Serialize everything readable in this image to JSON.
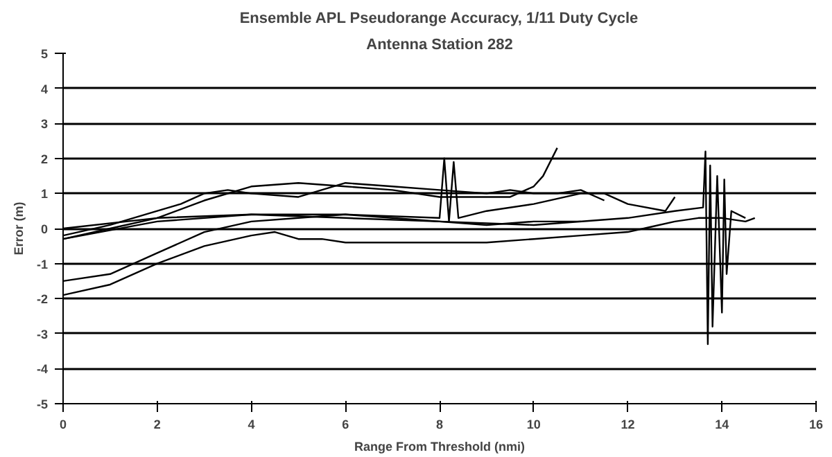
{
  "chart_data": {
    "type": "line",
    "title": "Ensemble APL Pseudorange Accuracy, 1/11 Duty Cycle",
    "subtitle": "Antenna Station 282",
    "xlabel": "Range From Threshold (nmi)",
    "ylabel": "Error (m)",
    "xlim": [
      0,
      16
    ],
    "xticks": [
      0,
      2,
      4,
      6,
      8,
      10,
      12,
      14,
      16
    ],
    "ylim": [
      -5,
      5
    ],
    "yticks": [
      -5,
      -4,
      -3,
      -2,
      -1,
      0,
      1,
      2,
      3,
      4,
      5
    ],
    "grid": "y",
    "marker": "none",
    "line_style": "solid",
    "series": [
      {
        "color": "#000000",
        "x": [
          0,
          1,
          2,
          3,
          4,
          4.5,
          5,
          5.5,
          6,
          7,
          8,
          9,
          10,
          11,
          12,
          12.5,
          13,
          13.5,
          14,
          14.5,
          14.7
        ],
        "values": [
          -1.9,
          -1.6,
          -1.0,
          -0.5,
          -0.2,
          -0.1,
          -0.3,
          -0.3,
          -0.4,
          -0.4,
          -0.4,
          -0.4,
          -0.3,
          -0.2,
          -0.1,
          0.05,
          0.2,
          0.3,
          0.3,
          0.2,
          0.3
        ]
      },
      {
        "color": "#000000",
        "x": [
          0,
          1,
          2,
          3,
          4,
          5,
          6,
          7,
          8,
          9,
          10,
          11
        ],
        "values": [
          -1.5,
          -1.3,
          -0.7,
          -0.1,
          0.2,
          0.3,
          0.4,
          0.3,
          0.2,
          0.1,
          0.2,
          0.2
        ]
      },
      {
        "color": "#000000",
        "x": [
          0,
          1,
          2,
          3,
          4,
          5,
          6,
          7,
          8,
          9,
          9.5,
          10,
          10.2,
          10.5
        ],
        "values": [
          -0.3,
          0,
          0.3,
          0.8,
          1.2,
          1.3,
          1.2,
          1.1,
          0.9,
          0.9,
          0.9,
          1.2,
          1.5,
          2.3
        ]
      },
      {
        "color": "#000000",
        "x": [
          0,
          2,
          4,
          6,
          8,
          8.1,
          8.2,
          8.3,
          8.4,
          9,
          10,
          11,
          11.5,
          12,
          12.8,
          13
        ],
        "values": [
          -0.3,
          0.2,
          0.4,
          0.4,
          0.3,
          2.0,
          0.2,
          1.9,
          0.3,
          0.5,
          0.7,
          1.0,
          1.0,
          0.7,
          0.5,
          0.9
        ]
      },
      {
        "color": "#000000",
        "x": [
          0,
          2,
          4,
          6,
          8,
          10,
          12,
          13,
          13.6,
          13.65,
          13.7,
          13.75,
          13.8,
          13.9,
          14,
          14.05,
          14.1,
          14.2,
          14.5
        ],
        "values": [
          0,
          0.3,
          0.4,
          0.3,
          0.2,
          0.1,
          0.3,
          0.5,
          0.6,
          2.2,
          -3.3,
          1.8,
          -2.8,
          1.5,
          -2.4,
          1.4,
          -1.3,
          0.5,
          0.3
        ]
      },
      {
        "color": "#000000",
        "x": [
          0,
          1,
          2,
          2.5,
          3,
          3.5,
          4,
          5,
          6,
          7,
          8,
          9,
          9.5,
          10,
          10.5,
          11,
          11.5
        ],
        "values": [
          -0.2,
          0.1,
          0.5,
          0.7,
          1.0,
          1.1,
          1.0,
          0.9,
          1.3,
          1.2,
          1.1,
          1.0,
          1.1,
          1.0,
          1.0,
          1.1,
          0.8
        ]
      }
    ]
  }
}
